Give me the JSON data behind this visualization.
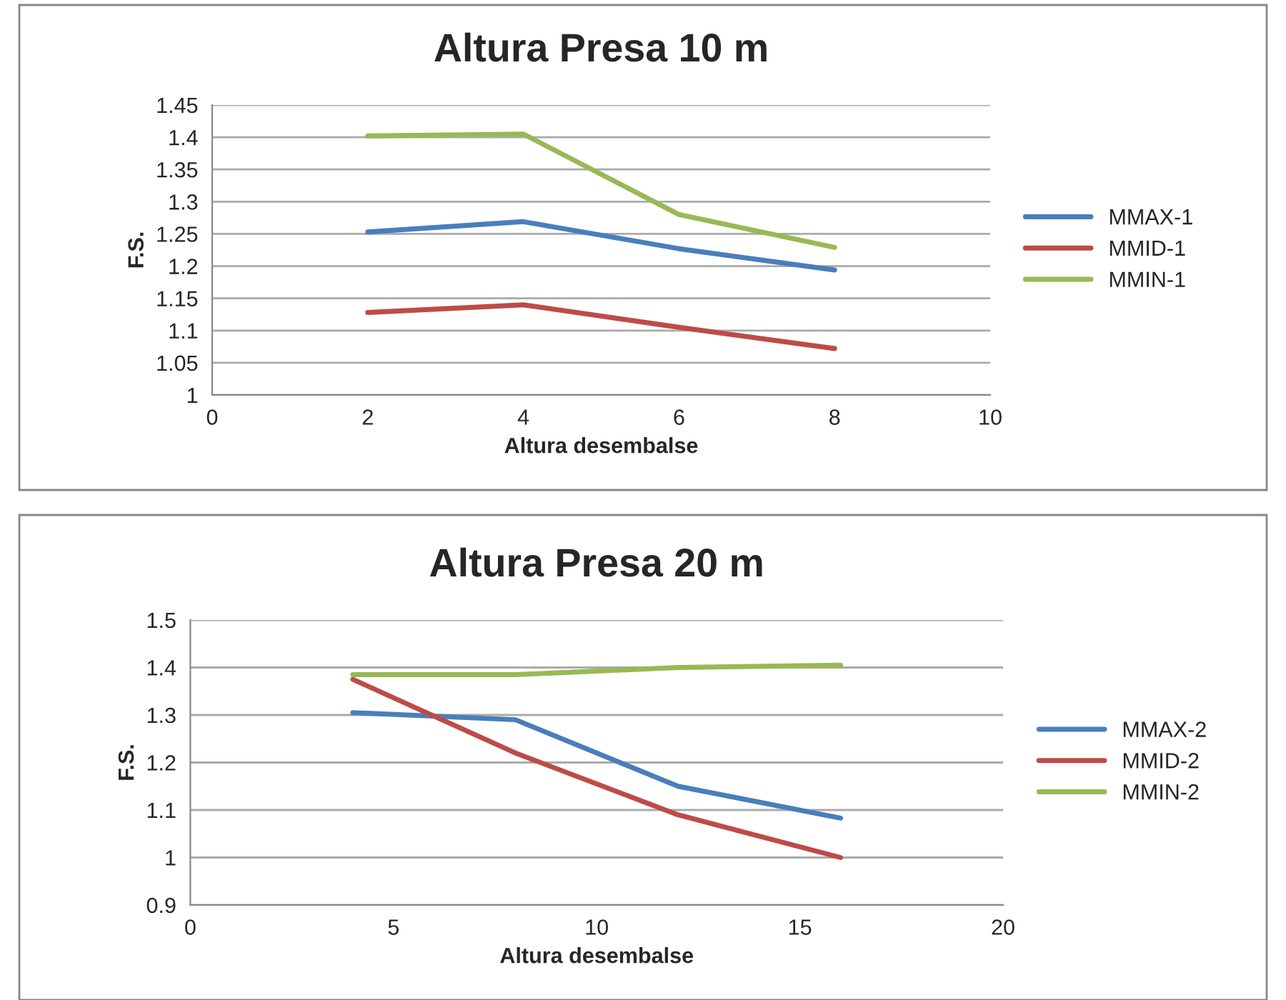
{
  "chart_data": [
    {
      "type": "line",
      "title": "Altura Presa 10 m",
      "xlabel": "Altura desembalse",
      "ylabel": "F.S.",
      "x": [
        2,
        4,
        6,
        8
      ],
      "series": [
        {
          "name": "MMAX-1",
          "color": "#4a7ebb",
          "values": [
            1.253,
            1.269,
            1.227,
            1.194
          ]
        },
        {
          "name": "MMID-1",
          "color": "#be4b48",
          "values": [
            1.128,
            1.14,
            1.105,
            1.072
          ]
        },
        {
          "name": "MMIN-1",
          "color": "#98b954",
          "values": [
            1.402,
            1.405,
            1.28,
            1.229
          ]
        }
      ],
      "xlim": [
        0,
        10
      ],
      "xticks": [
        0,
        2,
        4,
        6,
        8,
        10
      ],
      "ylim": [
        1,
        1.45
      ],
      "yticks": [
        1,
        1.05,
        1.1,
        1.15,
        1.2,
        1.25,
        1.3,
        1.35,
        1.4,
        1.45
      ],
      "grid": "y",
      "legend": "right",
      "marker": "none",
      "line_style": "solid"
    },
    {
      "type": "line",
      "title": "Altura Presa 20 m",
      "xlabel": "Altura desembalse",
      "ylabel": "F.S.",
      "x": [
        4,
        8,
        12,
        16
      ],
      "series": [
        {
          "name": "MMAX-2",
          "color": "#4a7ebb",
          "values": [
            1.305,
            1.29,
            1.15,
            1.083
          ]
        },
        {
          "name": "MMID-2",
          "color": "#be4b48",
          "values": [
            1.375,
            1.22,
            1.09,
            1.0
          ]
        },
        {
          "name": "MMIN-2",
          "color": "#98b954",
          "values": [
            1.385,
            1.385,
            1.4,
            1.405
          ]
        }
      ],
      "xlim": [
        0,
        20
      ],
      "xticks": [
        0,
        5,
        10,
        15,
        20
      ],
      "ylim": [
        0.9,
        1.5
      ],
      "yticks": [
        0.9,
        1,
        1.1,
        1.2,
        1.3,
        1.4,
        1.5
      ],
      "grid": "y",
      "legend": "right",
      "marker": "none",
      "line_style": "solid"
    }
  ]
}
